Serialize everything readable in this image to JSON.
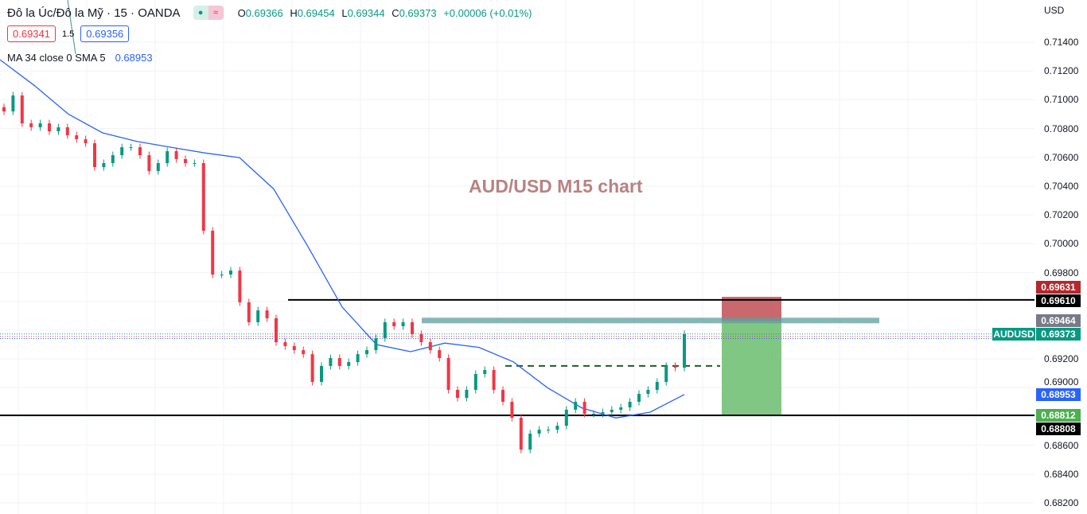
{
  "header": {
    "symbol": "Đô la Úc/Đô la Mỹ · 15 · OANDA",
    "market_dot_color": "#089981",
    "o_label": "O",
    "o": "0.69366",
    "h_label": "H",
    "h": "0.69454",
    "l_label": "L",
    "l": "0.69344",
    "c_label": "C",
    "c": "0.69373",
    "change": "+0.00006 (+0.01%)",
    "sell_price": "0.69341",
    "spread": "1.5",
    "buy_price": "0.69356",
    "indicator_label": "MA 34 close 0 SMA 5",
    "indicator_value": "0.68953"
  },
  "axis": {
    "currency": "USD",
    "ticks": [
      "0.71400",
      "0.71200",
      "0.71000",
      "0.70800",
      "0.70600",
      "0.70400",
      "0.70200",
      "0.70000",
      "0.69800",
      "0.69200",
      "0.69000",
      "0.68600",
      "0.68400",
      "0.68200"
    ]
  },
  "tags": {
    "stop": "0.69631",
    "resistance": "0.69610",
    "zone": "0.69464",
    "symbol": "AUDUSD",
    "last": "0.69373",
    "ma": "0.68953",
    "target": "0.68812",
    "support": "0.68808"
  },
  "watermark": "AUD/USD M15 chart",
  "colors": {
    "up": "#089981",
    "down": "#f23645",
    "ma": "#2962ff",
    "stop": "#b2292e",
    "target": "#4caf50",
    "zone": "#5f9ea0",
    "dashed": "#1b5e20"
  },
  "chart_data": {
    "type": "candlestick",
    "ylim": [
      0.6818,
      0.7152
    ],
    "grid": true,
    "closes": [
      0.70919,
      0.7103,
      0.70836,
      0.70809,
      0.70836,
      0.70781,
      0.70809,
      0.70753,
      0.70726,
      0.70698,
      0.70532,
      0.7056,
      0.70615,
      0.7067,
      0.7067,
      0.70615,
      0.70505,
      0.7056,
      0.70643,
      0.70588,
      0.7056,
      0.7056,
      0.7009,
      0.69786,
      0.69786,
      0.69814,
      0.69593,
      0.69455,
      0.69537,
      0.69482,
      0.69316,
      0.69289,
      0.69261,
      0.69233,
      0.6904,
      0.69151,
      0.69206,
      0.69151,
      0.69178,
      0.69233,
      0.69261,
      0.69344,
      0.69455,
      0.69427,
      0.69455,
      0.69372,
      0.69316,
      0.69261,
      0.69206,
      0.68985,
      0.68929,
      0.68985,
      0.69095,
      0.69123,
      0.68985,
      0.68902,
      0.68791,
      0.6857,
      0.68681,
      0.68708,
      0.68708,
      0.68736,
      0.68847,
      0.68902,
      0.68819,
      0.68819,
      0.6883,
      0.68847,
      0.68863,
      0.68902,
      0.68957,
      0.68985,
      0.6904,
      0.69151,
      0.69139,
      0.69372
    ],
    "ma34": [
      0.71278,
      0.711,
      0.709,
      0.7077,
      0.7071,
      0.7067,
      0.7063,
      0.70598,
      0.7038,
      0.6998,
      0.6956,
      0.693,
      0.6925,
      0.6931,
      0.6928,
      0.6918,
      0.69,
      0.6886,
      0.6879,
      0.6883,
      0.68953
    ],
    "levels": {
      "resistance": 0.6961,
      "support": 0.68808,
      "zone": 0.69464,
      "dashed": 0.69151,
      "stop": 0.69631,
      "target": 0.68812,
      "bid": 0.69341,
      "ask": 0.69356,
      "last": 0.69373
    }
  }
}
